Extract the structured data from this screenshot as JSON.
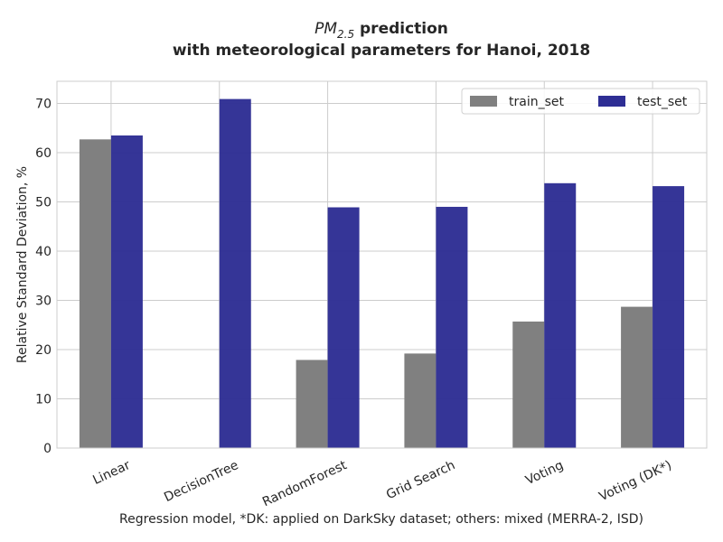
{
  "chart_data": {
    "type": "bar",
    "title": {
      "pm": "PM",
      "pm_sub": "2.5",
      "line1_rest": " prediction",
      "line2": "with meteorological parameters for Hanoi, 2018"
    },
    "xlabel": "Regression model, *DK: applied on DarkSky dataset; others: mixed (MERRA-2, ISD)",
    "ylabel": "Relative Standard Deviation, %",
    "categories": [
      "Linear",
      "DecisionTree",
      "RandomForest",
      "Grid Search",
      "Voting",
      "Voting (DK*)"
    ],
    "series": [
      {
        "name": "train_set",
        "color": "#808080",
        "values": [
          62.7,
          0,
          17.9,
          19.2,
          25.7,
          28.7
        ]
      },
      {
        "name": "test_set",
        "color": "#2e2e94",
        "values": [
          63.5,
          70.9,
          48.9,
          49.0,
          53.8,
          53.2
        ]
      }
    ],
    "ylim": [
      0,
      74.5
    ],
    "yticks": [
      0,
      10,
      20,
      30,
      40,
      50,
      60,
      70
    ],
    "grid": true,
    "legend_position": "top-right"
  }
}
